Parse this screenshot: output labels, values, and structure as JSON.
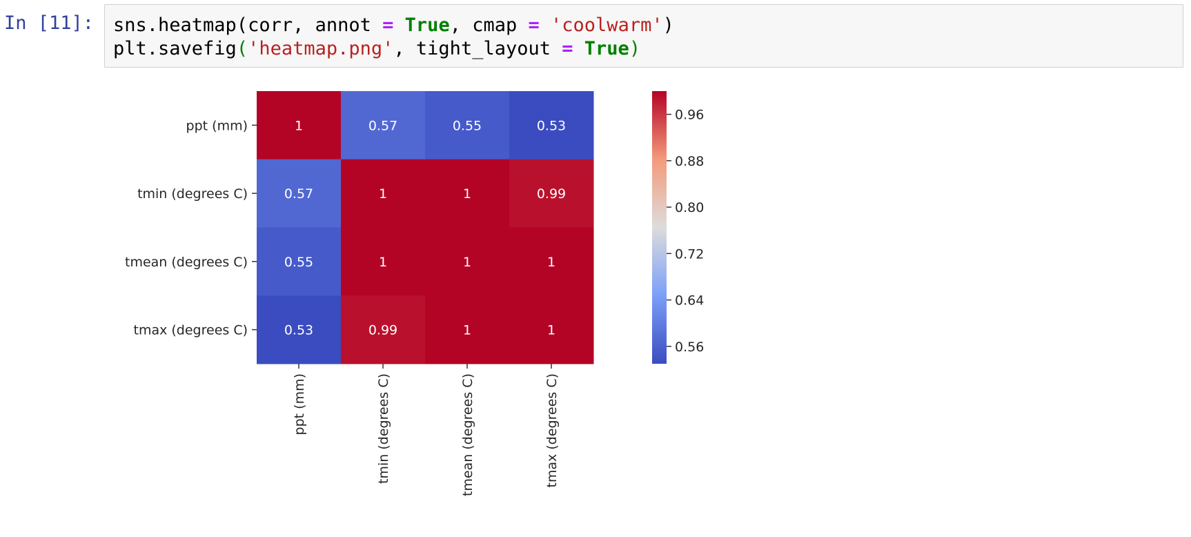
{
  "prompt": {
    "label": "In [11]:"
  },
  "code": {
    "line1": [
      {
        "t": "sns.heatmap(corr, annot ",
        "c": "plain"
      },
      {
        "t": "=",
        "c": "op"
      },
      {
        "t": " ",
        "c": "plain"
      },
      {
        "t": "True",
        "c": "kw"
      },
      {
        "t": ", cmap ",
        "c": "plain"
      },
      {
        "t": "=",
        "c": "op"
      },
      {
        "t": " ",
        "c": "plain"
      },
      {
        "t": "'coolwarm'",
        "c": "str"
      },
      {
        "t": ")",
        "c": "plain"
      }
    ],
    "line2": [
      {
        "t": "plt.savefig",
        "c": "plain"
      },
      {
        "t": "(",
        "c": "parg"
      },
      {
        "t": "'heatmap.png'",
        "c": "str"
      },
      {
        "t": ", tight_layout ",
        "c": "plain"
      },
      {
        "t": "=",
        "c": "op"
      },
      {
        "t": " ",
        "c": "plain"
      },
      {
        "t": "True",
        "c": "kw"
      },
      {
        "t": ")",
        "c": "parg"
      }
    ]
  },
  "chart_data": {
    "type": "heatmap",
    "colormap": "coolwarm",
    "rows": [
      "ppt (mm)",
      "tmin (degrees C)",
      "tmean (degrees C)",
      "tmax (degrees C)"
    ],
    "columns": [
      "ppt (mm)",
      "tmin (degrees C)",
      "tmean (degrees C)",
      "tmax (degrees C)"
    ],
    "values": [
      [
        1,
        0.57,
        0.55,
        0.53
      ],
      [
        0.57,
        1,
        1,
        0.99
      ],
      [
        0.55,
        1,
        1,
        1
      ],
      [
        0.53,
        0.99,
        1,
        1
      ]
    ],
    "annotations": [
      [
        "1",
        "0.57",
        "0.55",
        "0.53"
      ],
      [
        "0.57",
        "1",
        "1",
        "0.99"
      ],
      [
        "0.55",
        "1",
        "1",
        "1"
      ],
      [
        "0.53",
        "0.99",
        "1",
        "1"
      ]
    ],
    "colorbar": {
      "range": [
        0.53,
        1
      ],
      "ticks": [
        "0.96",
        "0.88",
        "0.80",
        "0.72",
        "0.64",
        "0.56"
      ],
      "tick_values": [
        0.96,
        0.88,
        0.8,
        0.72,
        0.64,
        0.56
      ]
    }
  }
}
